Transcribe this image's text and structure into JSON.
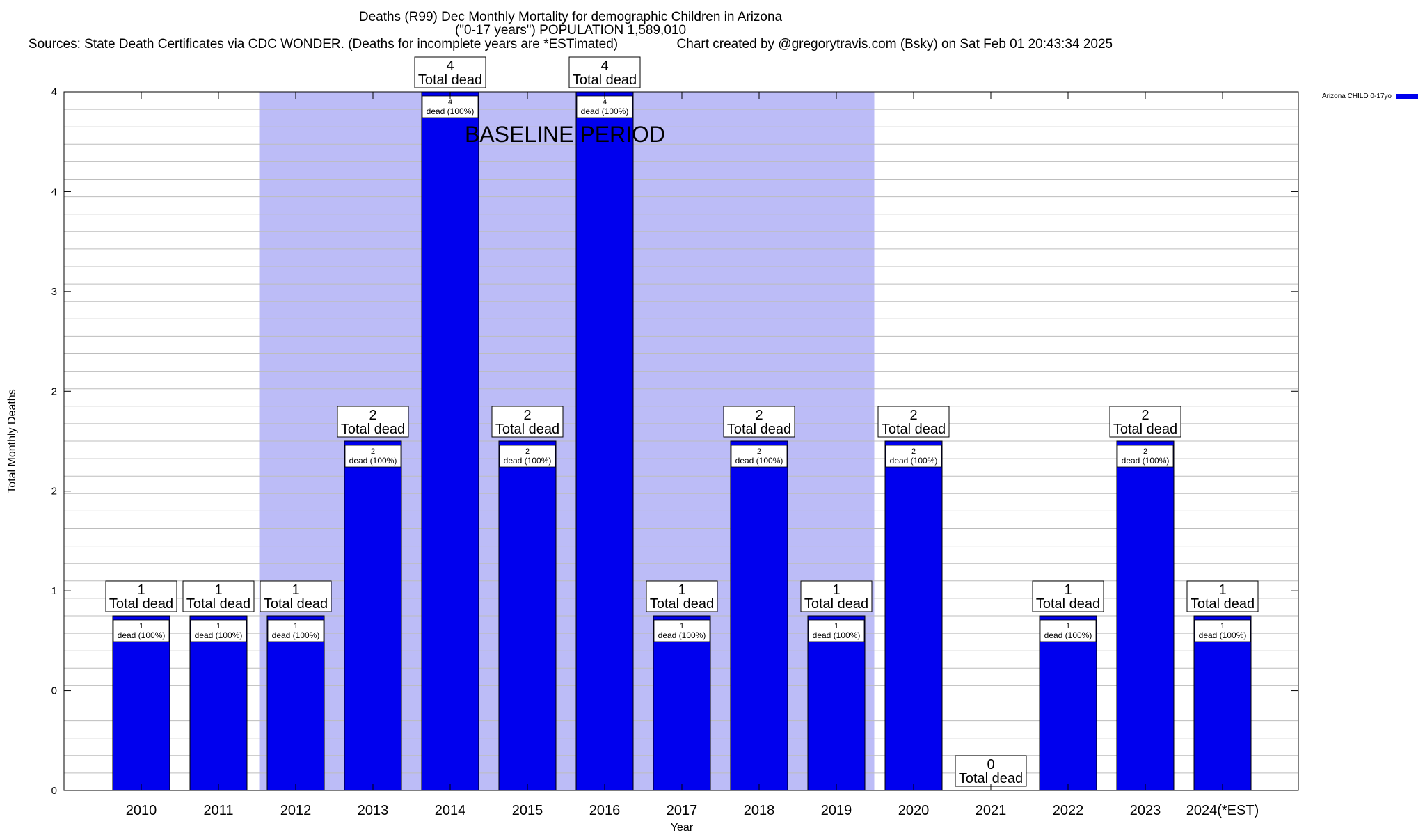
{
  "chart_data": {
    "type": "bar",
    "title": "Deaths (R99) Dec Monthly Mortality for demographic Children in Arizona",
    "subtitle": "(\"0-17 years\") POPULATION 1,589,010",
    "sources_line": "Sources: State Death Certificates via CDC WONDER. (Deaths for incomplete years are *ESTimated)                Chart created by @gregorytravis.com (Bsky) on Sat Feb 01 20:43:34 2025",
    "xlabel": "Year",
    "ylabel": "Total Monthly Deaths",
    "categories": [
      "2010",
      "2011",
      "2012",
      "2013",
      "2014",
      "2015",
      "2016",
      "2017",
      "2018",
      "2019",
      "2020",
      "2021",
      "2022",
      "2023",
      "2024(*EST)"
    ],
    "series": [
      {
        "name": "Arizona CHILD 0-17yo",
        "color": "#0000ee",
        "values": [
          1,
          1,
          1,
          2,
          4,
          2,
          4,
          1,
          2,
          1,
          2,
          0,
          1,
          2,
          1
        ]
      }
    ],
    "ylim": [
      0,
      4
    ],
    "ytick_labels": [
      "0",
      "0",
      "1",
      "2",
      "2",
      "3",
      "4",
      "4"
    ],
    "baseline": {
      "label": "BASELINE PERIOD",
      "start": "2012",
      "end": "2019",
      "color": "#bcbcf7"
    },
    "total_label_suffix": "Total dead",
    "inner_label_suffix": "dead (100%)",
    "grid": true,
    "legend": "top-right"
  }
}
